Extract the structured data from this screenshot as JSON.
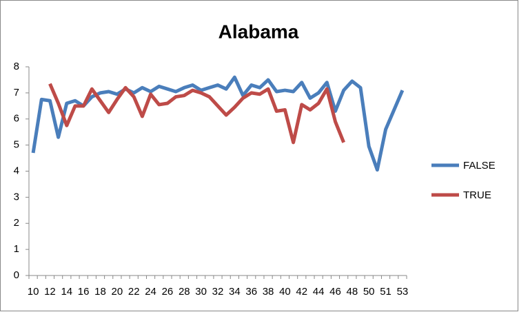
{
  "chart_data": {
    "type": "line",
    "title": "Alabama",
    "categories": [
      10,
      null,
      12,
      null,
      14,
      null,
      16,
      null,
      18,
      null,
      20,
      null,
      22,
      null,
      24,
      null,
      26,
      null,
      28,
      null,
      30,
      null,
      32,
      null,
      34,
      null,
      36,
      null,
      38,
      null,
      40,
      null,
      42,
      null,
      44,
      null,
      46,
      null,
      48,
      null,
      50,
      null,
      51,
      null,
      53
    ],
    "series": [
      {
        "name": "FALSE",
        "color": "#4a7ebb",
        "values": [
          4.7,
          6.75,
          6.7,
          5.3,
          6.6,
          6.7,
          6.5,
          6.85,
          7.0,
          7.05,
          6.95,
          7.15,
          7.0,
          7.2,
          7.05,
          7.25,
          7.15,
          7.05,
          7.2,
          7.3,
          7.1,
          7.2,
          7.3,
          7.15,
          7.6,
          6.9,
          7.3,
          7.2,
          7.5,
          7.05,
          7.1,
          7.05,
          7.4,
          6.8,
          7.0,
          7.4,
          6.3,
          7.1,
          7.45,
          7.2,
          4.95,
          4.05,
          5.6,
          6.35,
          7.1
        ]
      },
      {
        "name": "TRUE",
        "color": "#be4b48",
        "values": [
          null,
          null,
          7.35,
          6.6,
          5.75,
          6.5,
          6.5,
          7.15,
          6.7,
          6.25,
          6.75,
          7.2,
          6.85,
          6.1,
          6.95,
          6.55,
          6.6,
          6.85,
          6.9,
          7.1,
          7.0,
          6.85,
          6.5,
          6.15,
          6.45,
          6.8,
          7.0,
          6.95,
          7.15,
          6.3,
          6.35,
          5.1,
          6.55,
          6.35,
          6.6,
          7.15,
          5.9,
          5.1,
          null,
          null,
          null,
          null,
          null,
          null,
          null
        ]
      }
    ],
    "ylim": [
      0,
      8
    ],
    "yticks": [
      0,
      1,
      2,
      3,
      4,
      5,
      6,
      7,
      8
    ],
    "legend": "right"
  }
}
